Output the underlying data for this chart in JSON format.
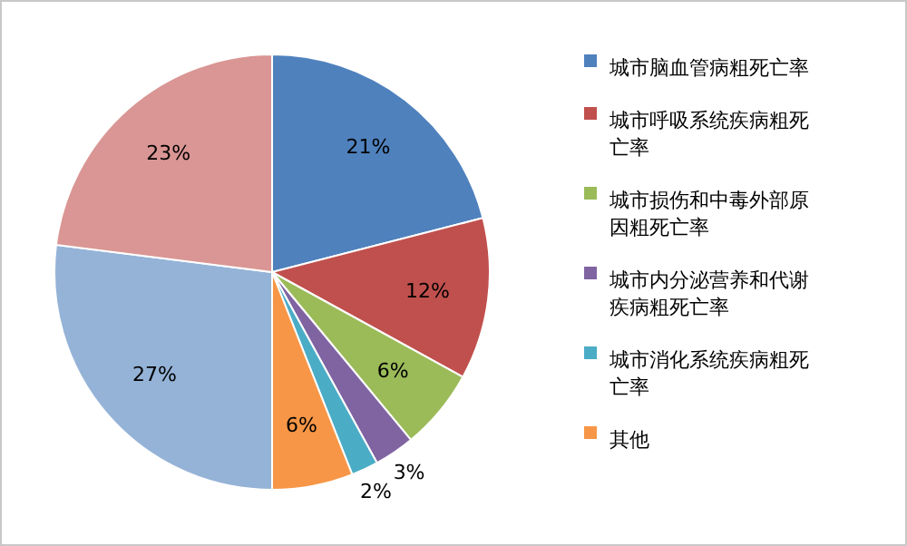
{
  "chart_data": {
    "type": "pie",
    "categories": [
      "城市脑血管病粗死亡率",
      "城市呼吸系统疾病粗死亡率",
      "城市损伤和中毒外部原因粗死亡率",
      "城市内分泌营养和代谢疾病粗死亡率",
      "城市消化系统疾病粗死亡率",
      "其他",
      null,
      null
    ],
    "values": [
      21,
      12,
      6,
      3,
      2,
      6,
      27,
      23
    ],
    "value_labels": [
      "21%",
      "12%",
      "6%",
      "3%",
      "2%",
      "6%",
      "27%",
      "23%"
    ],
    "colors": [
      "#4f81bd",
      "#c0504d",
      "#9bbb59",
      "#8064a2",
      "#4bacc6",
      "#f79646",
      "#95b3d7",
      "#d99694"
    ],
    "legend": "right"
  }
}
